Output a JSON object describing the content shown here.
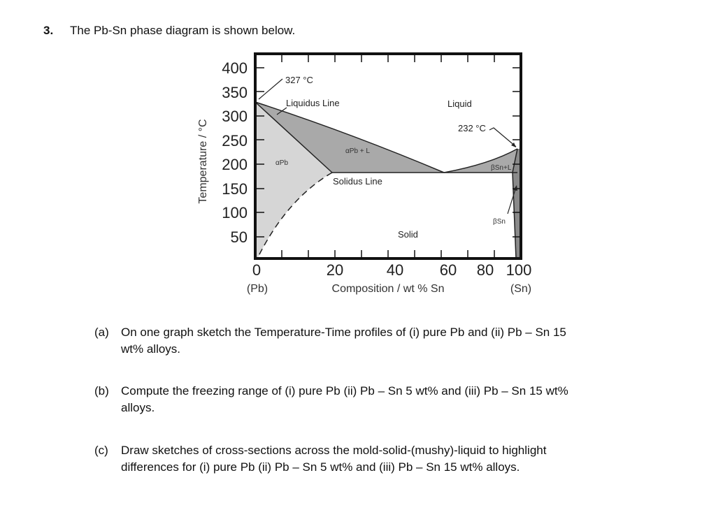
{
  "question": {
    "number": "3.",
    "intro": "The Pb-Sn phase diagram is shown below."
  },
  "diagram": {
    "y_axis_title": "Temperature / °C",
    "x_axis_title": "Composition / wt % Sn",
    "y_ticks": [
      "400",
      "350",
      "300",
      "250",
      "200",
      "150",
      "100",
      "50"
    ],
    "x_ticks": [
      "0",
      "20",
      "40",
      "60",
      "80",
      "100"
    ],
    "x_end_left": "(Pb)",
    "x_end_right": "(Sn)",
    "labels": {
      "pb_melt": "327 °C",
      "liquidus": "Liquidus Line",
      "liquid": "Liquid",
      "sn_melt": "232 °C",
      "alpha_l": "αPb + L",
      "alpha": "αPb",
      "beta_l": "βSn+L",
      "solidus": "Solidus Line",
      "beta": "βSn",
      "solid": "Solid"
    },
    "colors": {
      "liquid_region": "#ffffff",
      "two_phase_region": "#a9a9a9",
      "alpha_region": "#d6d6d6",
      "beta_region": "#8a8a8a",
      "solid_region": "#ffffff"
    }
  },
  "parts": [
    {
      "label": "(a)",
      "line1": "On one graph sketch the Temperature-Time profiles of (i) pure Pb and (ii) Pb – Sn 15",
      "line2": "wt% alloys."
    },
    {
      "label": "(b)",
      "line1": "Compute the freezing range of (i) pure Pb (ii) Pb – Sn 5 wt% and (iii) Pb – Sn 15 wt%",
      "line2": "alloys."
    },
    {
      "label": "(c)",
      "line1": "Draw sketches of cross-sections across the mold-solid-(mushy)-liquid to highlight",
      "line2": "differences for (i) pure Pb (ii) Pb – Sn 5 wt% and (iii) Pb – Sn 15 wt% alloys."
    }
  ]
}
